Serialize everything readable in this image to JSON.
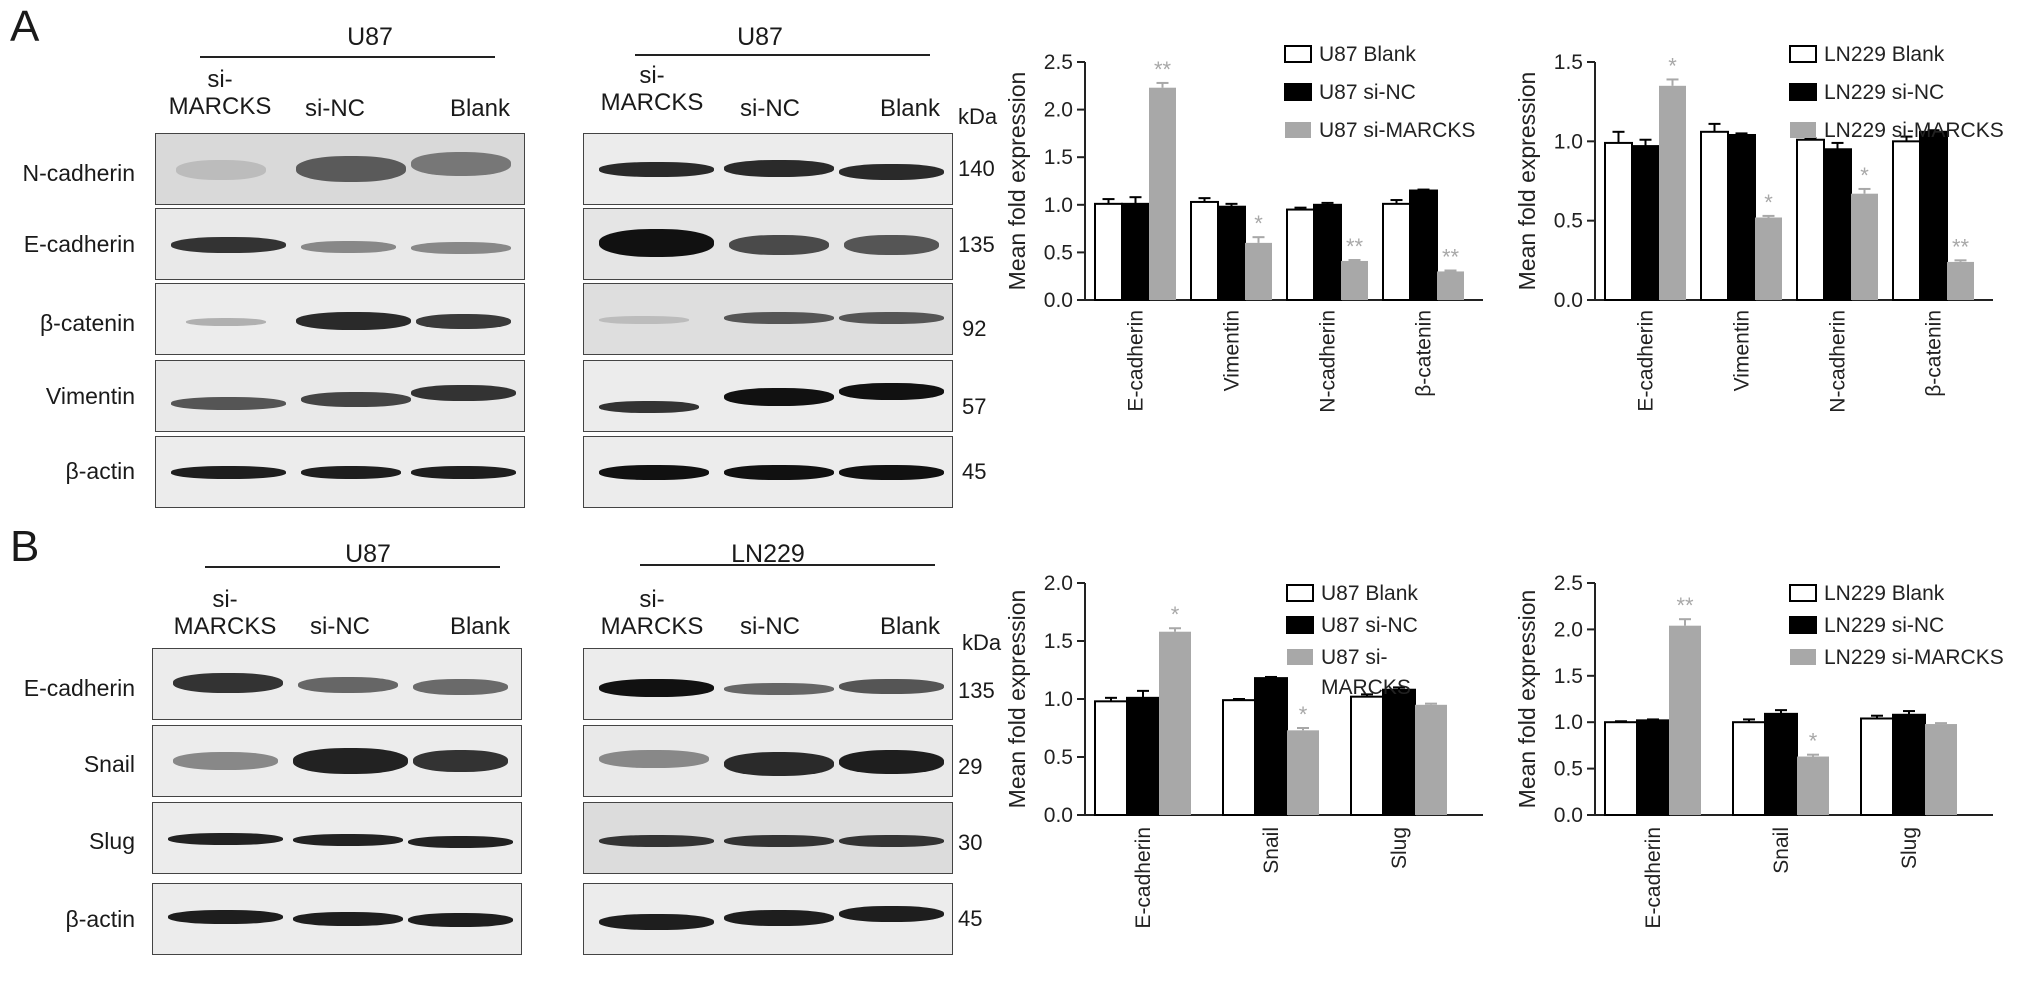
{
  "panels": [
    "A",
    "B"
  ],
  "row_a": {
    "left_cell": "U87",
    "right_cell": "U87",
    "lanes": [
      "si-\nMARCKS",
      "si-NC",
      "Blank"
    ],
    "proteins": [
      "N-cadherin",
      "E-cadherin",
      "β-catenin",
      "Vimentin",
      "β-actin"
    ],
    "kda_title": "kDa",
    "kda": [
      "140",
      "135",
      "92",
      "57",
      "45"
    ]
  },
  "row_b": {
    "left_cell": "U87",
    "right_cell": "LN229",
    "lanes": [
      "si-\nMARCKS",
      "si-NC",
      "Blank"
    ],
    "proteins": [
      "E-cadherin",
      "Snail",
      "Slug",
      "β-actin"
    ],
    "kda_title": "kDa",
    "kda": [
      "135",
      "29",
      "30",
      "45"
    ]
  },
  "colors": {
    "blank": "#ffffff",
    "si_nc": "#000000",
    "si_marcks": "#a8a8a8",
    "axis": "#222222"
  },
  "chart_data": [
    {
      "type": "bar",
      "ylabel": "Mean fold expression",
      "ylim": [
        0,
        2.5
      ],
      "yticks": [
        "0.0",
        "0.5",
        "1.0",
        "1.5",
        "2.0",
        "2.5"
      ],
      "categories": [
        "E-cadherin",
        "Vimentin",
        "N-cadherin",
        "β-catenin"
      ],
      "series": [
        {
          "name": "U87 Blank",
          "values": [
            1.01,
            1.03,
            0.95,
            1.01
          ]
        },
        {
          "name": "U87 si-NC",
          "values": [
            1.01,
            0.98,
            1.0,
            1.15
          ]
        },
        {
          "name": "U87 si-MARCKS",
          "values": [
            2.23,
            0.6,
            0.41,
            0.3
          ]
        }
      ],
      "errors": [
        [
          0.05,
          0.04,
          0.02,
          0.04
        ],
        [
          0.07,
          0.03,
          0.02,
          0.01
        ],
        [
          0.05,
          0.06,
          0.01,
          0.01
        ]
      ],
      "annotations": [
        "**",
        "*",
        "**",
        "**"
      ],
      "legend_position": "top-right"
    },
    {
      "type": "bar",
      "ylabel": "Mean fold expression",
      "ylim": [
        0,
        1.5
      ],
      "yticks": [
        "0.0",
        "0.5",
        "1.0",
        "1.5"
      ],
      "categories": [
        "E-cadherin",
        "Vimentin",
        "N-cadherin",
        "β-catenin"
      ],
      "series": [
        {
          "name": "LN229 Blank",
          "values": [
            0.99,
            1.06,
            1.01,
            1.0
          ]
        },
        {
          "name": "LN229 si-NC",
          "values": [
            0.97,
            1.04,
            0.95,
            1.06
          ]
        },
        {
          "name": "LN229 si-MARCKS",
          "values": [
            1.35,
            0.52,
            0.67,
            0.24
          ]
        }
      ],
      "errors": [
        [
          0.07,
          0.05,
          0.01,
          0.03
        ],
        [
          0.04,
          0.01,
          0.04,
          0.01
        ],
        [
          0.04,
          0.01,
          0.03,
          0.01
        ]
      ],
      "annotations": [
        "*",
        "*",
        "*",
        "**"
      ],
      "legend_position": "top-right"
    },
    {
      "type": "bar",
      "ylabel": "Mean fold expression",
      "ylim": [
        0,
        2.0
      ],
      "yticks": [
        "0.0",
        "0.5",
        "1.0",
        "1.5",
        "2.0"
      ],
      "categories": [
        "E-cadherin",
        "Snail",
        "Slug"
      ],
      "series": [
        {
          "name": "U87 Blank",
          "values": [
            0.98,
            0.99,
            1.02
          ]
        },
        {
          "name": "U87 si-NC",
          "values": [
            1.01,
            1.18,
            1.08
          ]
        },
        {
          "name": "U87 si-\nMARCKS",
          "values": [
            1.58,
            0.73,
            0.95
          ]
        }
      ],
      "errors": [
        [
          0.03,
          0.01,
          0.02
        ],
        [
          0.06,
          0.01,
          0.02
        ],
        [
          0.03,
          0.02,
          0.01
        ]
      ],
      "annotations": [
        "*",
        "*",
        ""
      ],
      "legend_position": "top-right"
    },
    {
      "type": "bar",
      "ylabel": "Mean fold expression",
      "ylim": [
        0,
        2.5
      ],
      "yticks": [
        "0.0",
        "0.5",
        "1.0",
        "1.5",
        "2.0",
        "2.5"
      ],
      "categories": [
        "E-cadherin",
        "Snail",
        "Slug"
      ],
      "series": [
        {
          "name": "LN229 Blank",
          "values": [
            1.0,
            1.0,
            1.04
          ]
        },
        {
          "name": "LN229 si-NC",
          "values": [
            1.02,
            1.09,
            1.08
          ]
        },
        {
          "name": "LN229 si-MARCKS",
          "values": [
            2.04,
            0.63,
            0.98
          ]
        }
      ],
      "errors": [
        [
          0.01,
          0.03,
          0.03
        ],
        [
          0.01,
          0.04,
          0.04
        ],
        [
          0.07,
          0.02,
          0.01
        ]
      ],
      "annotations": [
        "**",
        "*",
        ""
      ],
      "legend_position": "top-right"
    }
  ]
}
